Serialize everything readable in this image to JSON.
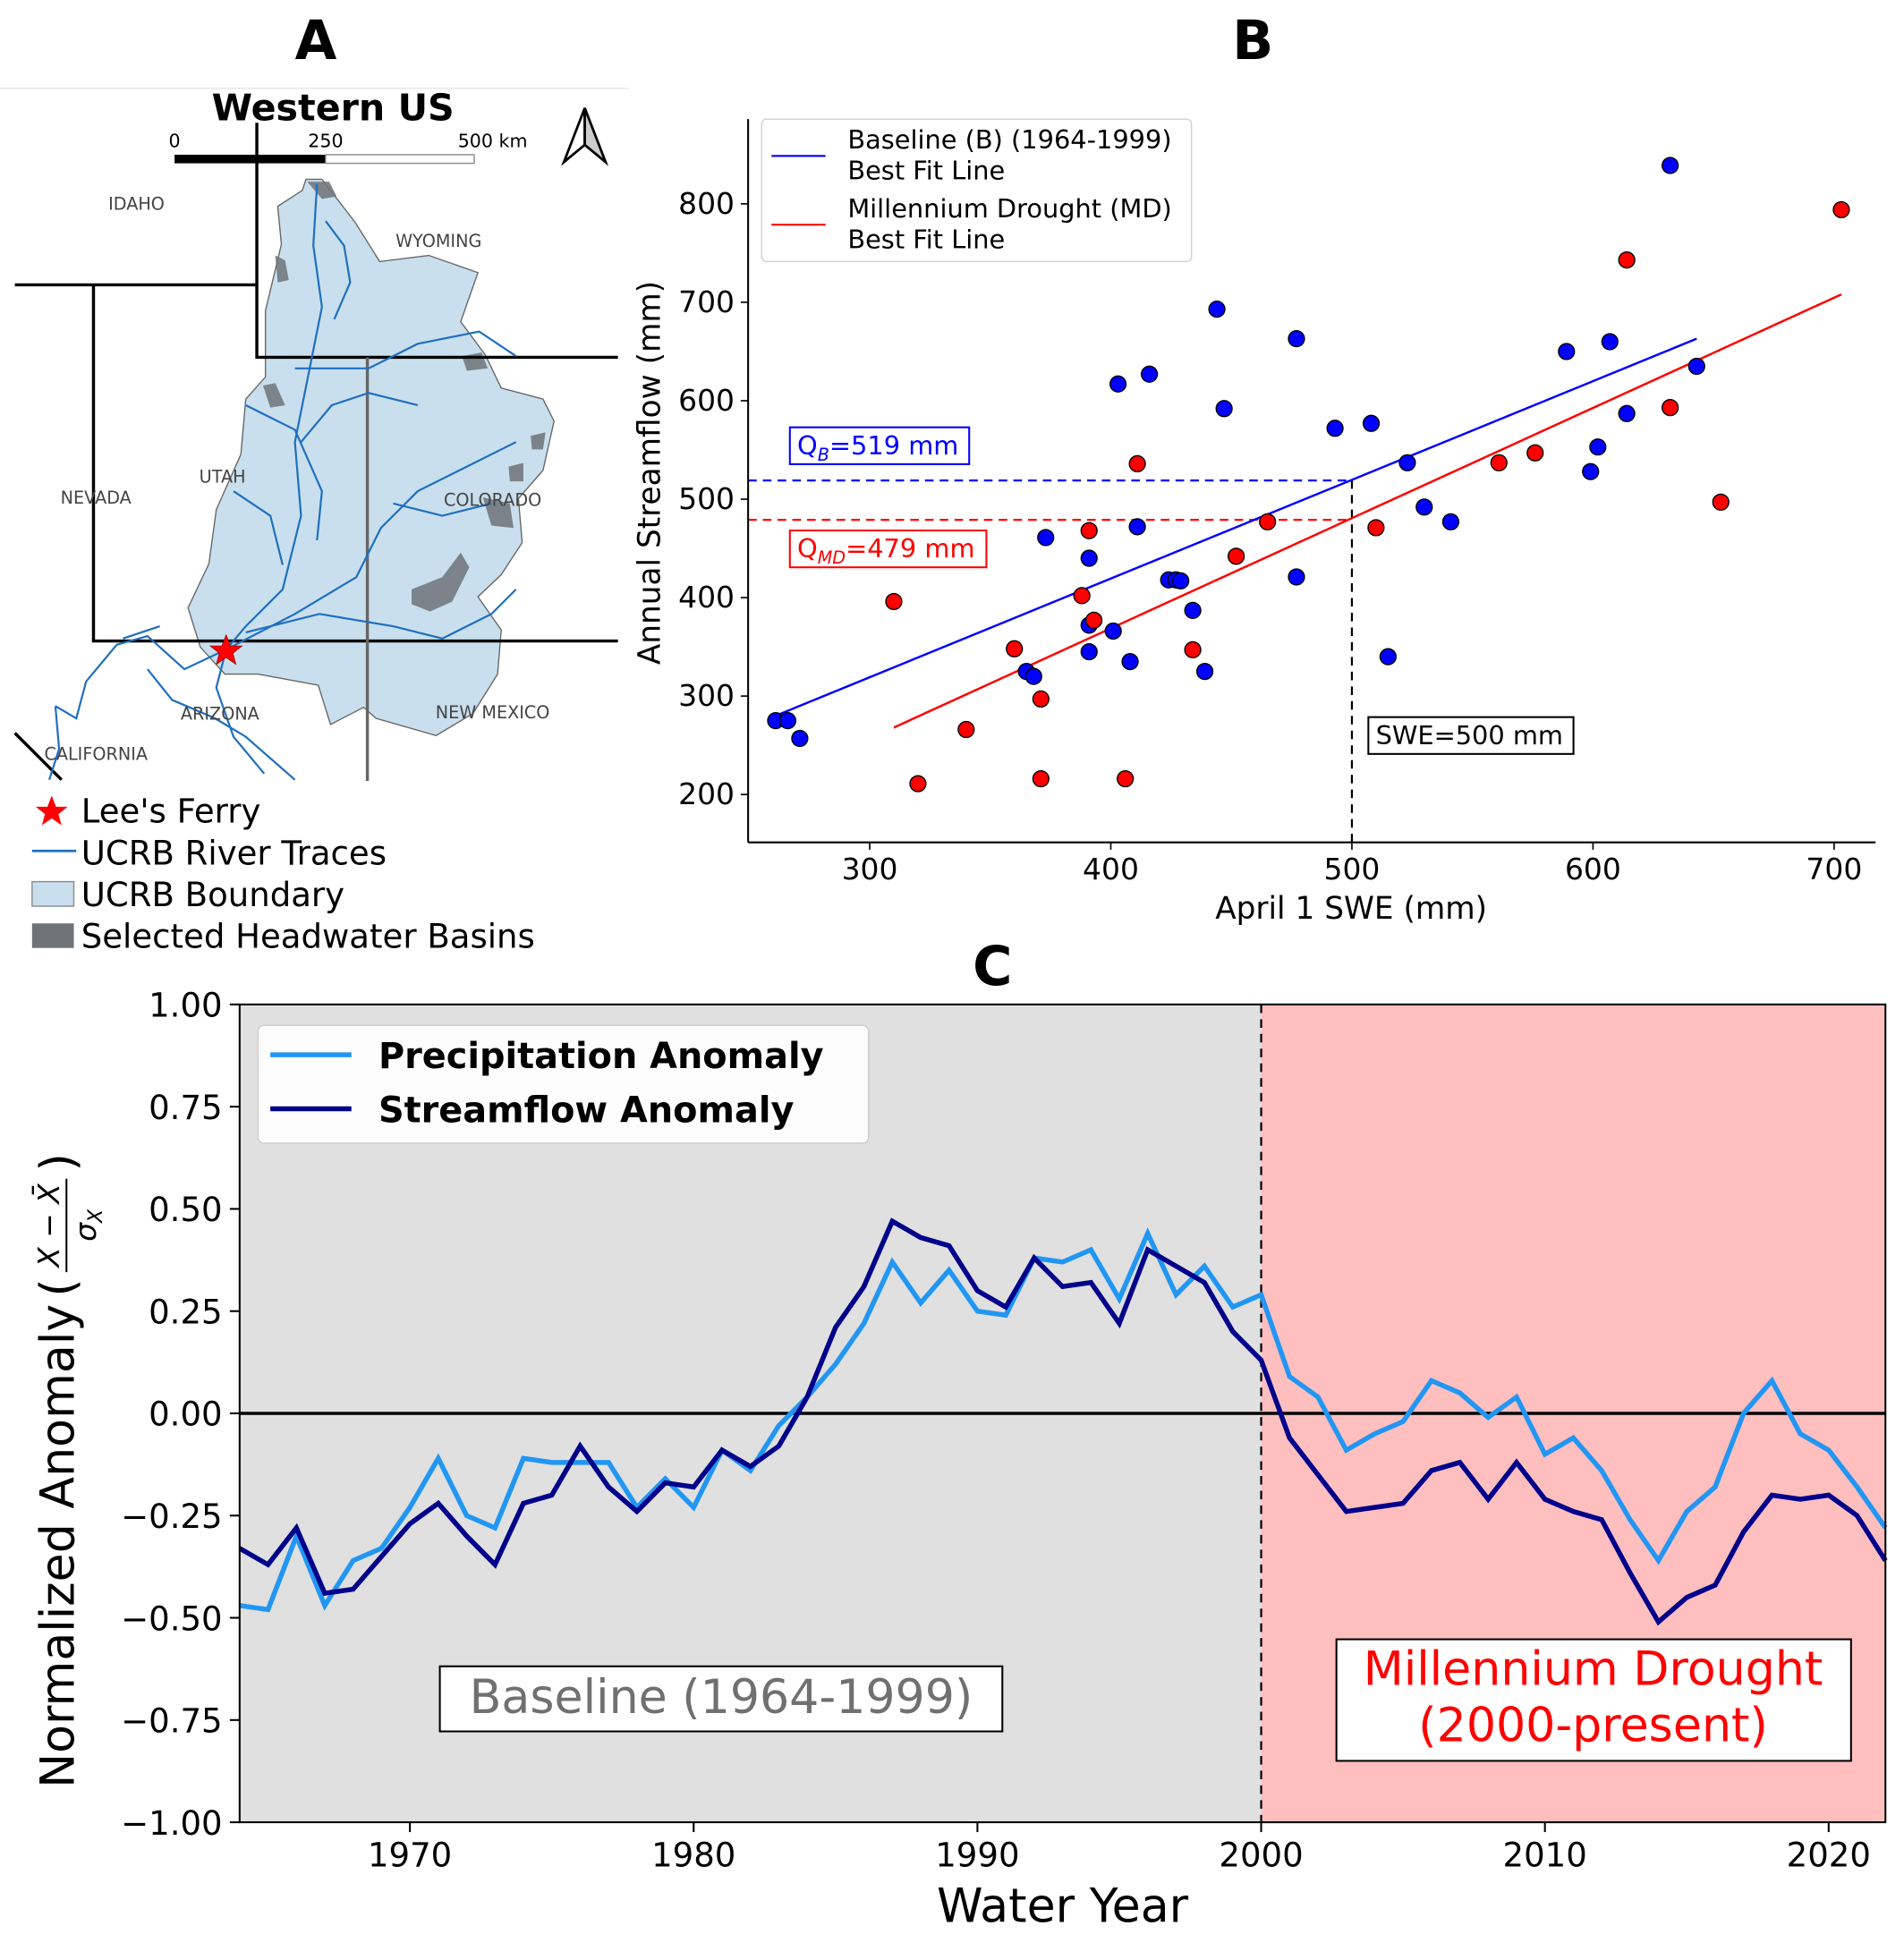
{
  "panel_labels": {
    "a": "A",
    "b": "B",
    "c": "C"
  },
  "map": {
    "title": "Western US",
    "scale_labels": [
      "0",
      "250",
      "500 km"
    ],
    "states": [
      "IDAHO",
      "WYOMING",
      "UTAH",
      "NEVADA",
      "COLORADO",
      "ARIZONA",
      "NEW MEXICO",
      "CALIFORNIA"
    ],
    "legend": [
      "Lee's Ferry",
      "UCRB River Traces",
      "UCRB Boundary",
      "Selected Headwater Basins"
    ],
    "colors": {
      "boundary": "#c9dfee",
      "rivers": "#1f6fbf",
      "basins": "#6e7378",
      "star": "#ff0000"
    },
    "icons": [
      "north-arrow-icon",
      "star-icon"
    ]
  },
  "chart_data": [
    {
      "type": "scatter",
      "xlabel": "April 1 SWE (mm)",
      "ylabel": "Annual Streamflow (mm)",
      "xlim": [
        250,
        717
      ],
      "ylim": [
        151,
        882
      ],
      "xticks": [
        300,
        400,
        500,
        600,
        700
      ],
      "yticks": [
        200,
        300,
        400,
        500,
        600,
        700,
        800
      ],
      "grid": false,
      "legend_position": "top-left",
      "series": [
        {
          "name": "Baseline (B) (1964-1999)",
          "color": "#0000ff",
          "points": [
            [
              261,
              275
            ],
            [
              266,
              275
            ],
            [
              271,
              257
            ],
            [
              373,
              461
            ],
            [
              365,
              325
            ],
            [
              368,
              320
            ],
            [
              391,
              440
            ],
            [
              391,
              372
            ],
            [
              391,
              345
            ],
            [
              401,
              366
            ],
            [
              403,
              617
            ],
            [
              408,
              335
            ],
            [
              411,
              472
            ],
            [
              416,
              627
            ],
            [
              424,
              418
            ],
            [
              427,
              418
            ],
            [
              429,
              417
            ],
            [
              434,
              387
            ],
            [
              439,
              325
            ],
            [
              444,
              693
            ],
            [
              447,
              592
            ],
            [
              477,
              663
            ],
            [
              477,
              421
            ],
            [
              493,
              572
            ],
            [
              508,
              577
            ],
            [
              515,
              340
            ],
            [
              523,
              537
            ],
            [
              530,
              492
            ],
            [
              541,
              477
            ],
            [
              589,
              650
            ],
            [
              599,
              528
            ],
            [
              602,
              553
            ],
            [
              607,
              660
            ],
            [
              614,
              587
            ],
            [
              632,
              839
            ],
            [
              643,
              635
            ]
          ],
          "fit_line": {
            "label": "Baseline (B) (1964-1999)\nBest Fit Line",
            "label_lines": [
              "Baseline (B) (1964-1999)",
              "Best Fit Line"
            ],
            "from": [
              261,
              280
            ],
            "to": [
              643,
              663
            ]
          }
        },
        {
          "name": "Millennium Drought (MD)",
          "color": "#ff0000",
          "points": [
            [
              310,
              396
            ],
            [
              320,
              211
            ],
            [
              340,
              266
            ],
            [
              360,
              348
            ],
            [
              371,
              297
            ],
            [
              371,
              216
            ],
            [
              388,
              402
            ],
            [
              391,
              468
            ],
            [
              393,
              377
            ],
            [
              406,
              216
            ],
            [
              411,
              536
            ],
            [
              434,
              347
            ],
            [
              452,
              442
            ],
            [
              465,
              477
            ],
            [
              510,
              471
            ],
            [
              561,
              537
            ],
            [
              576,
              547
            ],
            [
              614,
              743
            ],
            [
              632,
              593
            ],
            [
              653,
              497
            ],
            [
              703,
              794
            ]
          ],
          "fit_line": {
            "label_lines": [
              "Millennium Drought (MD)",
              "Best Fit Line"
            ],
            "from": [
              310,
              268
            ],
            "to": [
              703,
              708
            ]
          }
        }
      ],
      "annotations": {
        "qb": {
          "prefix": "Q",
          "sub": "B",
          "suffix": "=519 mm",
          "value": 519,
          "color": "#0000ff"
        },
        "qmd": {
          "prefix": "Q",
          "sub": "MD",
          "suffix": "=479 mm",
          "value": 479,
          "color": "#ff0000"
        },
        "swe": {
          "text": "SWE=500 mm",
          "value": 500
        }
      }
    },
    {
      "type": "line",
      "xlabel": "Water Year",
      "ylabel": "Normalized Anomaly",
      "ylabel_formula": {
        "num": "X − X̄",
        "den": "σ",
        "den_sub": "X"
      },
      "xlim": [
        1964,
        2022
      ],
      "ylim": [
        -1.0,
        1.0
      ],
      "xticks": [
        1970,
        1980,
        1990,
        2000,
        2010,
        2020
      ],
      "yticks": [
        "−1.00",
        "−0.75",
        "−0.50",
        "−0.25",
        "0.00",
        "0.25",
        "0.50",
        "0.75",
        "1.00"
      ],
      "ytick_values": [
        -1.0,
        -0.75,
        -0.5,
        -0.25,
        0.0,
        0.25,
        0.5,
        0.75,
        1.0
      ],
      "legend_position": "top-left",
      "regions": [
        {
          "label": "Baseline (1964-1999)",
          "from": 1964,
          "to": 2000,
          "color": "#e0e0e0",
          "text_color": "#707070"
        },
        {
          "label_lines": [
            "Millennium Drought",
            "(2000-present)"
          ],
          "from": 2000,
          "to": 2022,
          "color": "#ffbfbf",
          "text_color": "#ff0000"
        }
      ],
      "x": [
        1964,
        1965,
        1966,
        1967,
        1968,
        1969,
        1970,
        1971,
        1972,
        1973,
        1974,
        1975,
        1976,
        1977,
        1978,
        1979,
        1980,
        1981,
        1982,
        1983,
        1984,
        1985,
        1986,
        1987,
        1988,
        1989,
        1990,
        1991,
        1992,
        1993,
        1994,
        1995,
        1996,
        1997,
        1998,
        1999,
        2000,
        2001,
        2002,
        2003,
        2004,
        2005,
        2006,
        2007,
        2008,
        2009,
        2010,
        2011,
        2012,
        2013,
        2014,
        2015,
        2016,
        2017,
        2018,
        2019,
        2020,
        2021,
        2022
      ],
      "series": [
        {
          "name": "Precipitation Anomaly",
          "color": "#2196f3",
          "values": [
            -0.47,
            -0.48,
            -0.3,
            -0.47,
            -0.36,
            -0.33,
            -0.23,
            -0.11,
            -0.25,
            -0.28,
            -0.11,
            -0.12,
            -0.12,
            -0.12,
            -0.23,
            -0.16,
            -0.23,
            -0.09,
            -0.14,
            -0.03,
            0.04,
            0.12,
            0.22,
            0.37,
            0.27,
            0.35,
            0.25,
            0.24,
            0.38,
            0.37,
            0.4,
            0.28,
            0.44,
            0.29,
            0.36,
            0.26,
            0.29,
            0.09,
            0.04,
            -0.09,
            -0.05,
            -0.02,
            0.08,
            0.05,
            -0.01,
            0.04,
            -0.1,
            -0.06,
            -0.14,
            -0.26,
            -0.36,
            -0.24,
            -0.18,
            0.0,
            0.08,
            -0.05,
            -0.09,
            -0.18,
            -0.28
          ]
        },
        {
          "name": "Streamflow Anomaly",
          "color": "#00008b",
          "values": [
            -0.33,
            -0.37,
            -0.28,
            -0.44,
            -0.43,
            -0.35,
            -0.27,
            -0.22,
            -0.3,
            -0.37,
            -0.22,
            -0.2,
            -0.08,
            -0.18,
            -0.24,
            -0.17,
            -0.18,
            -0.09,
            -0.13,
            -0.08,
            0.04,
            0.21,
            0.31,
            0.47,
            0.43,
            0.41,
            0.3,
            0.26,
            0.38,
            0.31,
            0.32,
            0.22,
            0.4,
            0.36,
            0.32,
            0.2,
            0.13,
            -0.06,
            -0.15,
            -0.24,
            -0.23,
            -0.22,
            -0.14,
            -0.12,
            -0.21,
            -0.12,
            -0.21,
            -0.24,
            -0.26,
            -0.39,
            -0.51,
            -0.45,
            -0.42,
            -0.29,
            -0.2,
            -0.21,
            -0.2,
            -0.25,
            -0.36
          ]
        }
      ]
    }
  ]
}
